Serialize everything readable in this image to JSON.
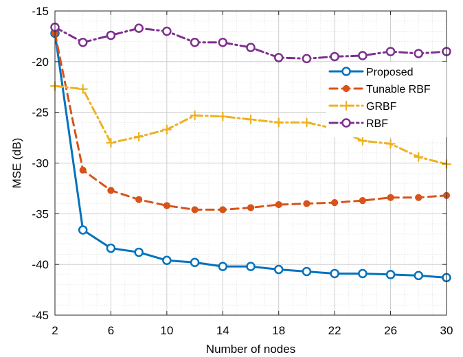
{
  "chart_data": {
    "type": "line",
    "xlabel": "Number of nodes",
    "ylabel": "MSE (dB)",
    "xlim": [
      2,
      30
    ],
    "ylim": [
      -45,
      -15
    ],
    "xticks": [
      2,
      6,
      10,
      14,
      18,
      22,
      26,
      30
    ],
    "yticks": [
      -15,
      -20,
      -25,
      -30,
      -35,
      -40,
      -45
    ],
    "grid": true,
    "minor_grid": true,
    "legend_position": "top-right",
    "x": [
      2,
      4,
      6,
      8,
      10,
      12,
      14,
      16,
      18,
      20,
      22,
      24,
      26,
      28,
      30
    ],
    "series": [
      {
        "name": "Proposed",
        "color": "#0072BD",
        "line_style": "solid",
        "marker": "circle-open",
        "values": [
          -17.2,
          -36.6,
          -38.4,
          -38.8,
          -39.6,
          -39.8,
          -40.2,
          -40.2,
          -40.5,
          -40.7,
          -40.9,
          -40.9,
          -41.0,
          -41.1,
          -41.3
        ]
      },
      {
        "name": "Tunable RBF",
        "color": "#D95319",
        "line_style": "dashed",
        "marker": "circle-filled",
        "values": [
          -17.2,
          -30.7,
          -32.7,
          -33.6,
          -34.2,
          -34.6,
          -34.6,
          -34.4,
          -34.1,
          -34.0,
          -33.9,
          -33.7,
          -33.4,
          -33.4,
          -33.2
        ]
      },
      {
        "name": "GRBF",
        "color": "#EDB120",
        "line_style": "dashdot",
        "marker": "plus",
        "values": [
          -22.4,
          -22.7,
          -28.0,
          -27.4,
          -26.7,
          -25.3,
          -25.4,
          -25.7,
          -26.0,
          -26.0,
          -26.6,
          -27.8,
          -28.1,
          -29.4,
          -30.1
        ]
      },
      {
        "name": "RBF",
        "color": "#7E2F8E",
        "line_style": "dashdot",
        "marker": "circle-open",
        "values": [
          -16.6,
          -18.1,
          -17.4,
          -16.7,
          -17.0,
          -18.1,
          -18.1,
          -18.6,
          -19.6,
          -19.7,
          -19.5,
          -19.4,
          -19.0,
          -19.2,
          -19.0
        ]
      }
    ]
  }
}
